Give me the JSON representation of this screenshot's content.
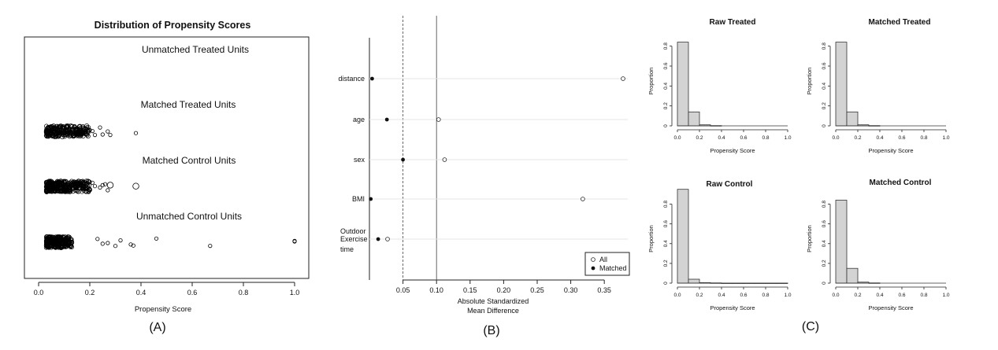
{
  "chart_data": [
    {
      "type": "scatter",
      "panel_label": "(A)",
      "title": "Distribution of Propensity Scores",
      "xlabel": "Propensity Score",
      "xlim": [
        0.0,
        1.0
      ],
      "x_ticks": [
        "0.0",
        "0.2",
        "0.4",
        "0.6",
        "0.8",
        "1.0"
      ],
      "groups": [
        {
          "name": "Unmatched Treated Units",
          "x": []
        },
        {
          "name": "Matched Treated Units",
          "cluster": [
            0.03,
            0.2
          ],
          "x": [
            0.16,
            0.19,
            0.21,
            0.22,
            0.24,
            0.25,
            0.27,
            0.28,
            0.38
          ]
        },
        {
          "name": "Matched Control Units",
          "cluster": [
            0.03,
            0.2
          ],
          "x": [
            0.17,
            0.2,
            0.21,
            0.22,
            0.24,
            0.25,
            0.26,
            0.27,
            0.28,
            0.38
          ]
        },
        {
          "name": "Unmatched Control Units",
          "cluster": [
            0.03,
            0.13
          ],
          "x": [
            0.23,
            0.25,
            0.27,
            0.3,
            0.32,
            0.36,
            0.37,
            0.46,
            0.67,
            1.0,
            1.0
          ]
        }
      ]
    },
    {
      "type": "scatter",
      "panel_label": "(B)",
      "xlabel": "Absolute Standardized Mean Difference",
      "xlim": [
        0.0,
        0.385
      ],
      "x_ticks": [
        "0.05",
        "0.10",
        "0.15",
        "0.20",
        "0.25",
        "0.30",
        "0.35"
      ],
      "reference_lines": [
        {
          "x": 0.05,
          "style": "dashed"
        },
        {
          "x": 0.1,
          "style": "solid"
        }
      ],
      "categories": [
        "distance",
        "age",
        "sex",
        "BMI",
        "Outdoor Exercise time"
      ],
      "series": [
        {
          "name": "All",
          "marker": "open",
          "values": [
            0.378,
            0.103,
            0.112,
            0.318,
            0.027
          ]
        },
        {
          "name": "Matched",
          "marker": "filled",
          "values": [
            0.004,
            0.026,
            0.05,
            0.002,
            0.013
          ]
        }
      ],
      "legend": "bottom-right"
    },
    {
      "type": "bar",
      "panel_label": "(C)",
      "panels": [
        {
          "title": "Raw Treated",
          "xlabel": "Propensity Score",
          "ylabel": "Proportion",
          "x_ticks": [
            "0.0",
            "0.2",
            "0.4",
            "0.6",
            "0.8",
            "1.0"
          ],
          "y_ticks": [
            "0",
            "0.2",
            "0.4",
            "0.6",
            "0.8"
          ],
          "bins": [
            0,
            0.1,
            0.2,
            0.3,
            0.4
          ],
          "values": [
            0.84,
            0.14,
            0.01,
            0.002
          ]
        },
        {
          "title": "Matched Treated",
          "xlabel": "Propensity Score",
          "ylabel": "Proportion",
          "x_ticks": [
            "0.0",
            "0.2",
            "0.4",
            "0.6",
            "0.8",
            "1.0"
          ],
          "y_ticks": [
            "0",
            "0.2",
            "0.4",
            "0.6",
            "0.8"
          ],
          "bins": [
            0,
            0.1,
            0.2,
            0.3,
            0.4
          ],
          "values": [
            0.84,
            0.14,
            0.01,
            0.002
          ]
        },
        {
          "title": "Raw Control",
          "xlabel": "Propensity Score",
          "ylabel": "Proportion",
          "x_ticks": [
            "0.0",
            "0.2",
            "0.4",
            "0.6",
            "0.8",
            "1.0"
          ],
          "y_ticks": [
            "0",
            "0.2",
            "0.4",
            "0.6",
            "0.8"
          ],
          "bins": [
            0,
            0.1,
            0.2,
            0.3,
            0.4,
            0.5,
            0.6,
            0.7,
            0.8,
            0.9,
            1.0
          ],
          "values": [
            0.95,
            0.04,
            0.005,
            0.002,
            0.001,
            0.001,
            0.001,
            0.001,
            0.001,
            0.001
          ]
        },
        {
          "title": "Matched Control",
          "xlabel": "Propensity Score",
          "ylabel": "Proportion",
          "x_ticks": [
            "0.0",
            "0.2",
            "0.4",
            "0.6",
            "0.8",
            "1.0"
          ],
          "y_ticks": [
            "0",
            "0.2",
            "0.4",
            "0.6",
            "0.8"
          ],
          "bins": [
            0,
            0.1,
            0.2,
            0.3,
            0.4
          ],
          "values": [
            0.84,
            0.15,
            0.01,
            0.002
          ]
        }
      ]
    }
  ]
}
